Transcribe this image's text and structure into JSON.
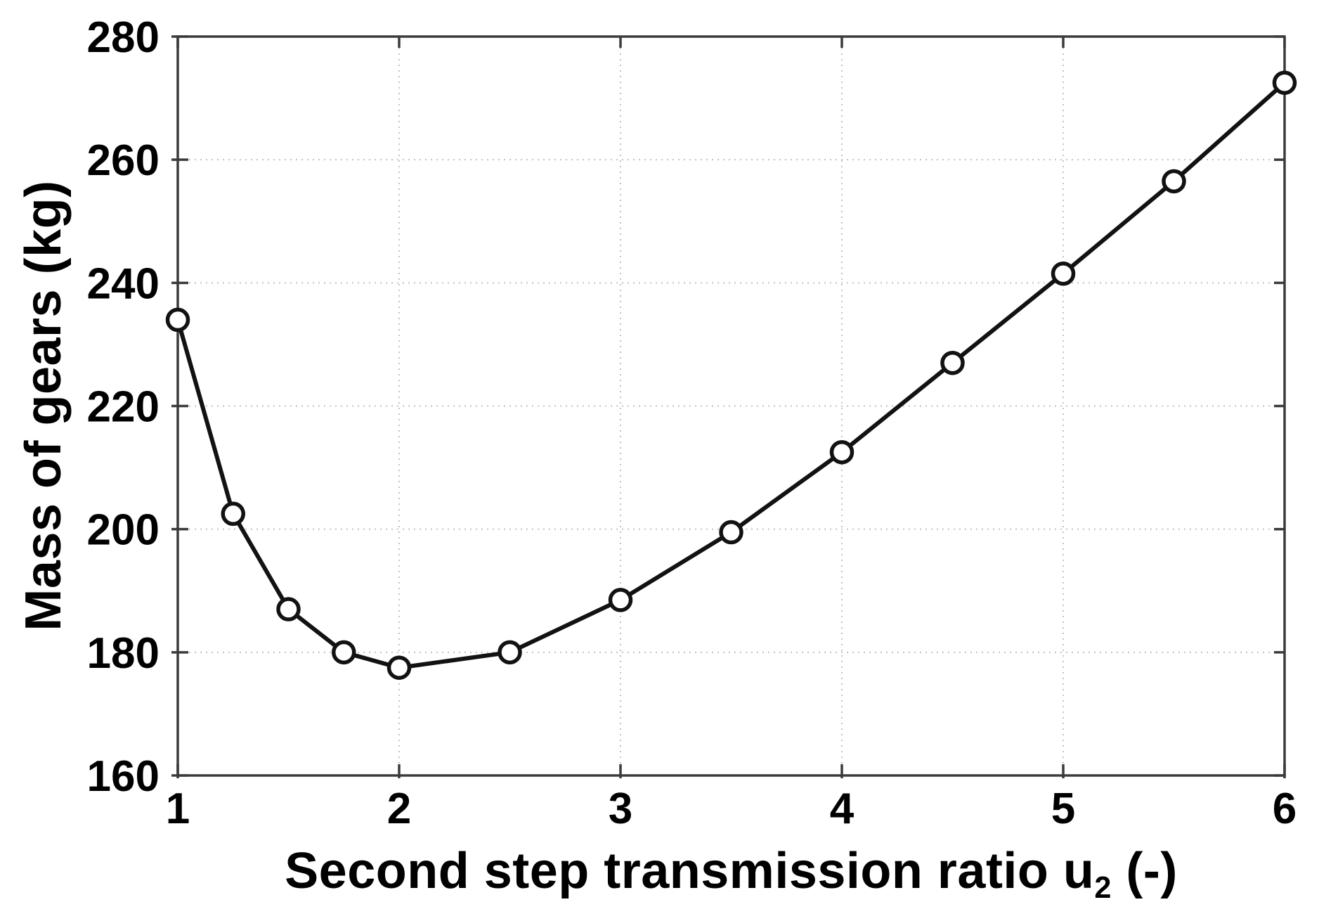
{
  "chart_data": {
    "type": "line",
    "title": "",
    "ylabel": "Mass of gears (kg)",
    "xlabel_parts": {
      "text": "Second step transmission ratio u",
      "sub": "2",
      "suffix": " (-)"
    },
    "x": [
      1,
      1.25,
      1.5,
      1.75,
      2,
      2.5,
      3,
      3.5,
      4,
      4.5,
      5,
      5.5,
      6
    ],
    "series": [
      {
        "name": "Mass of gears",
        "values": [
          234,
          202.5,
          187,
          180,
          177.5,
          180,
          188.5,
          199.5,
          212.5,
          227,
          241.5,
          256.5,
          272.5
        ]
      }
    ],
    "xlim": [
      1,
      6
    ],
    "ylim": [
      160,
      280
    ],
    "xticks": [
      1,
      2,
      3,
      4,
      5,
      6
    ],
    "yticks": [
      160,
      180,
      200,
      220,
      240,
      260,
      280
    ],
    "grid": true,
    "legend_position": "none",
    "marker": "open-circle",
    "line_style": "solid",
    "colors": {
      "line": "#121212",
      "marker_fill": "#ffffff",
      "grid": "#c8c0c0",
      "axis": "#3b3b3b",
      "text": "#000000"
    }
  }
}
